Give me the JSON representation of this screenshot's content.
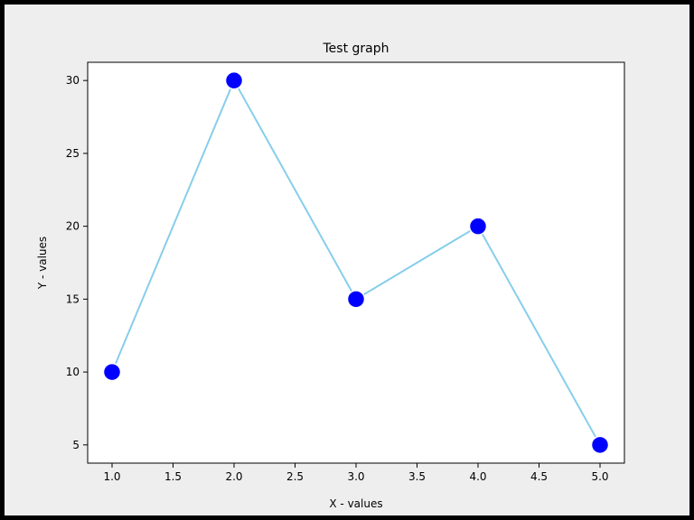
{
  "colors": {
    "frame": "#000000",
    "figure_background": "#eeeeee",
    "plot_background": "#ffffff",
    "line": "#87ceeb",
    "marker_fill": "#0000ff",
    "marker_edge": "#ffffff"
  },
  "chart_data": {
    "type": "line",
    "title": "Test graph",
    "xlabel": "X - values",
    "ylabel": "Y - values",
    "x": [
      1,
      2,
      3,
      4,
      5
    ],
    "series": [
      {
        "values": [
          10,
          30,
          15,
          20,
          5
        ]
      }
    ],
    "xlim": [
      0.8,
      5.2
    ],
    "ylim": [
      3.75,
      31.25
    ],
    "x_ticks": [
      1.0,
      1.5,
      2.0,
      2.5,
      3.0,
      3.5,
      4.0,
      4.5,
      5.0
    ],
    "x_tick_labels": [
      "1.0",
      "1.5",
      "2.0",
      "2.5",
      "3.0",
      "3.5",
      "4.0",
      "4.5",
      "5.0"
    ],
    "y_ticks": [
      5,
      10,
      15,
      20,
      25,
      30
    ],
    "y_tick_labels": [
      "5",
      "10",
      "15",
      "20",
      "25",
      "30"
    ],
    "grid": false,
    "markers": "circle"
  }
}
